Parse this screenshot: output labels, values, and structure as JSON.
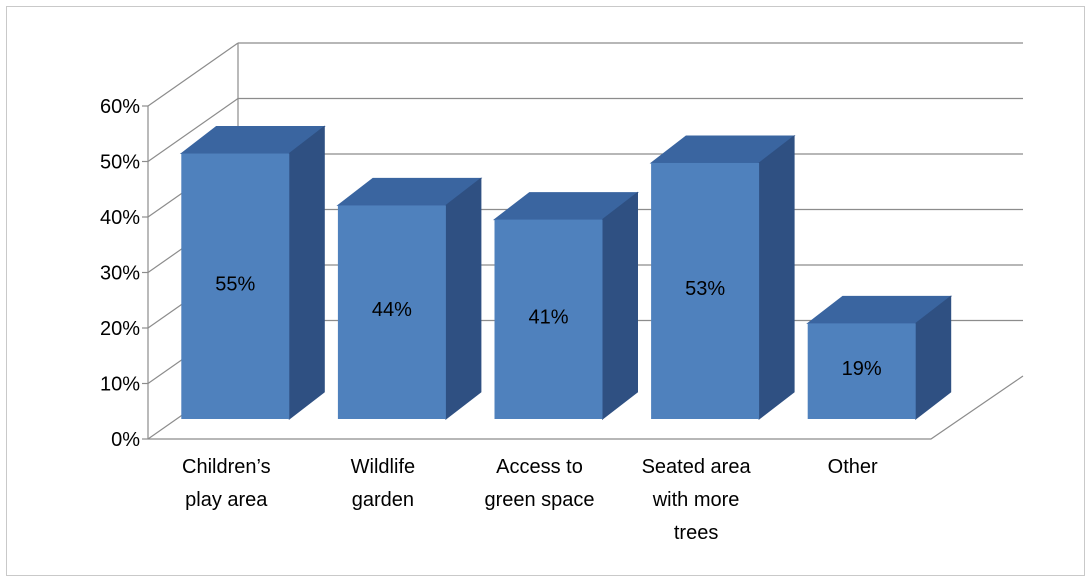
{
  "chart_data": {
    "type": "bar",
    "style": "3d-column",
    "categories": [
      [
        "Children’s",
        "play area"
      ],
      [
        "Wildlife",
        "garden"
      ],
      [
        "Access to",
        "green space"
      ],
      [
        "Seated area",
        "with more",
        "trees"
      ],
      [
        "Other"
      ]
    ],
    "values": [
      55,
      44,
      41,
      53,
      19
    ],
    "data_labels": [
      "55%",
      "44%",
      "41%",
      "53%",
      "19%"
    ],
    "y_ticks": [
      "0%",
      "10%",
      "20%",
      "30%",
      "40%",
      "50%",
      "60%"
    ],
    "ylim": [
      0,
      60
    ],
    "grid": true,
    "legend": "none",
    "colors": {
      "front": "#4F81BD",
      "side": "#2F5082",
      "top": "#3A65A0",
      "grid": "#8C8C8C",
      "text": "#000000"
    }
  }
}
